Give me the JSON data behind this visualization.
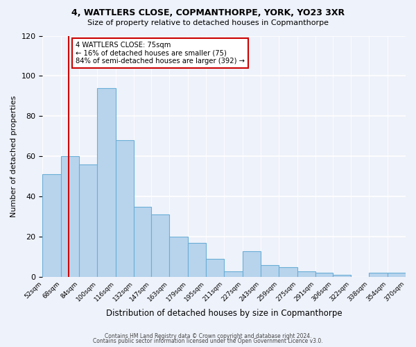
{
  "title": "4, WATTLERS CLOSE, COPMANTHORPE, YORK, YO23 3XR",
  "subtitle": "Size of property relative to detached houses in Copmanthorpe",
  "xlabel": "Distribution of detached houses by size in Copmanthorpe",
  "ylabel": "Number of detached properties",
  "bar_edges": [
    52,
    68,
    84,
    100,
    116,
    132,
    147,
    163,
    179,
    195,
    211,
    227,
    243,
    259,
    275,
    291,
    306,
    322,
    338,
    354,
    370
  ],
  "bar_heights": [
    51,
    60,
    56,
    94,
    68,
    35,
    31,
    20,
    17,
    9,
    3,
    13,
    6,
    5,
    3,
    2,
    1,
    0,
    2,
    2
  ],
  "bar_color": "#b8d4ed",
  "bar_edge_color": "#6aaed6",
  "ylim": [
    0,
    120
  ],
  "yticks": [
    0,
    20,
    40,
    60,
    80,
    100,
    120
  ],
  "property_line_x": 75,
  "property_line_color": "#cc0000",
  "annotation_text": "4 WATTLERS CLOSE: 75sqm\n← 16% of detached houses are smaller (75)\n84% of semi-detached houses are larger (392) →",
  "annotation_box_facecolor": "#ffffff",
  "annotation_box_edgecolor": "#cc0000",
  "footer_line1": "Contains HM Land Registry data © Crown copyright and database right 2024.",
  "footer_line2": "Contains public sector information licensed under the Open Government Licence v3.0.",
  "background_color": "#eef2fa",
  "plot_background": "#eef2fa"
}
